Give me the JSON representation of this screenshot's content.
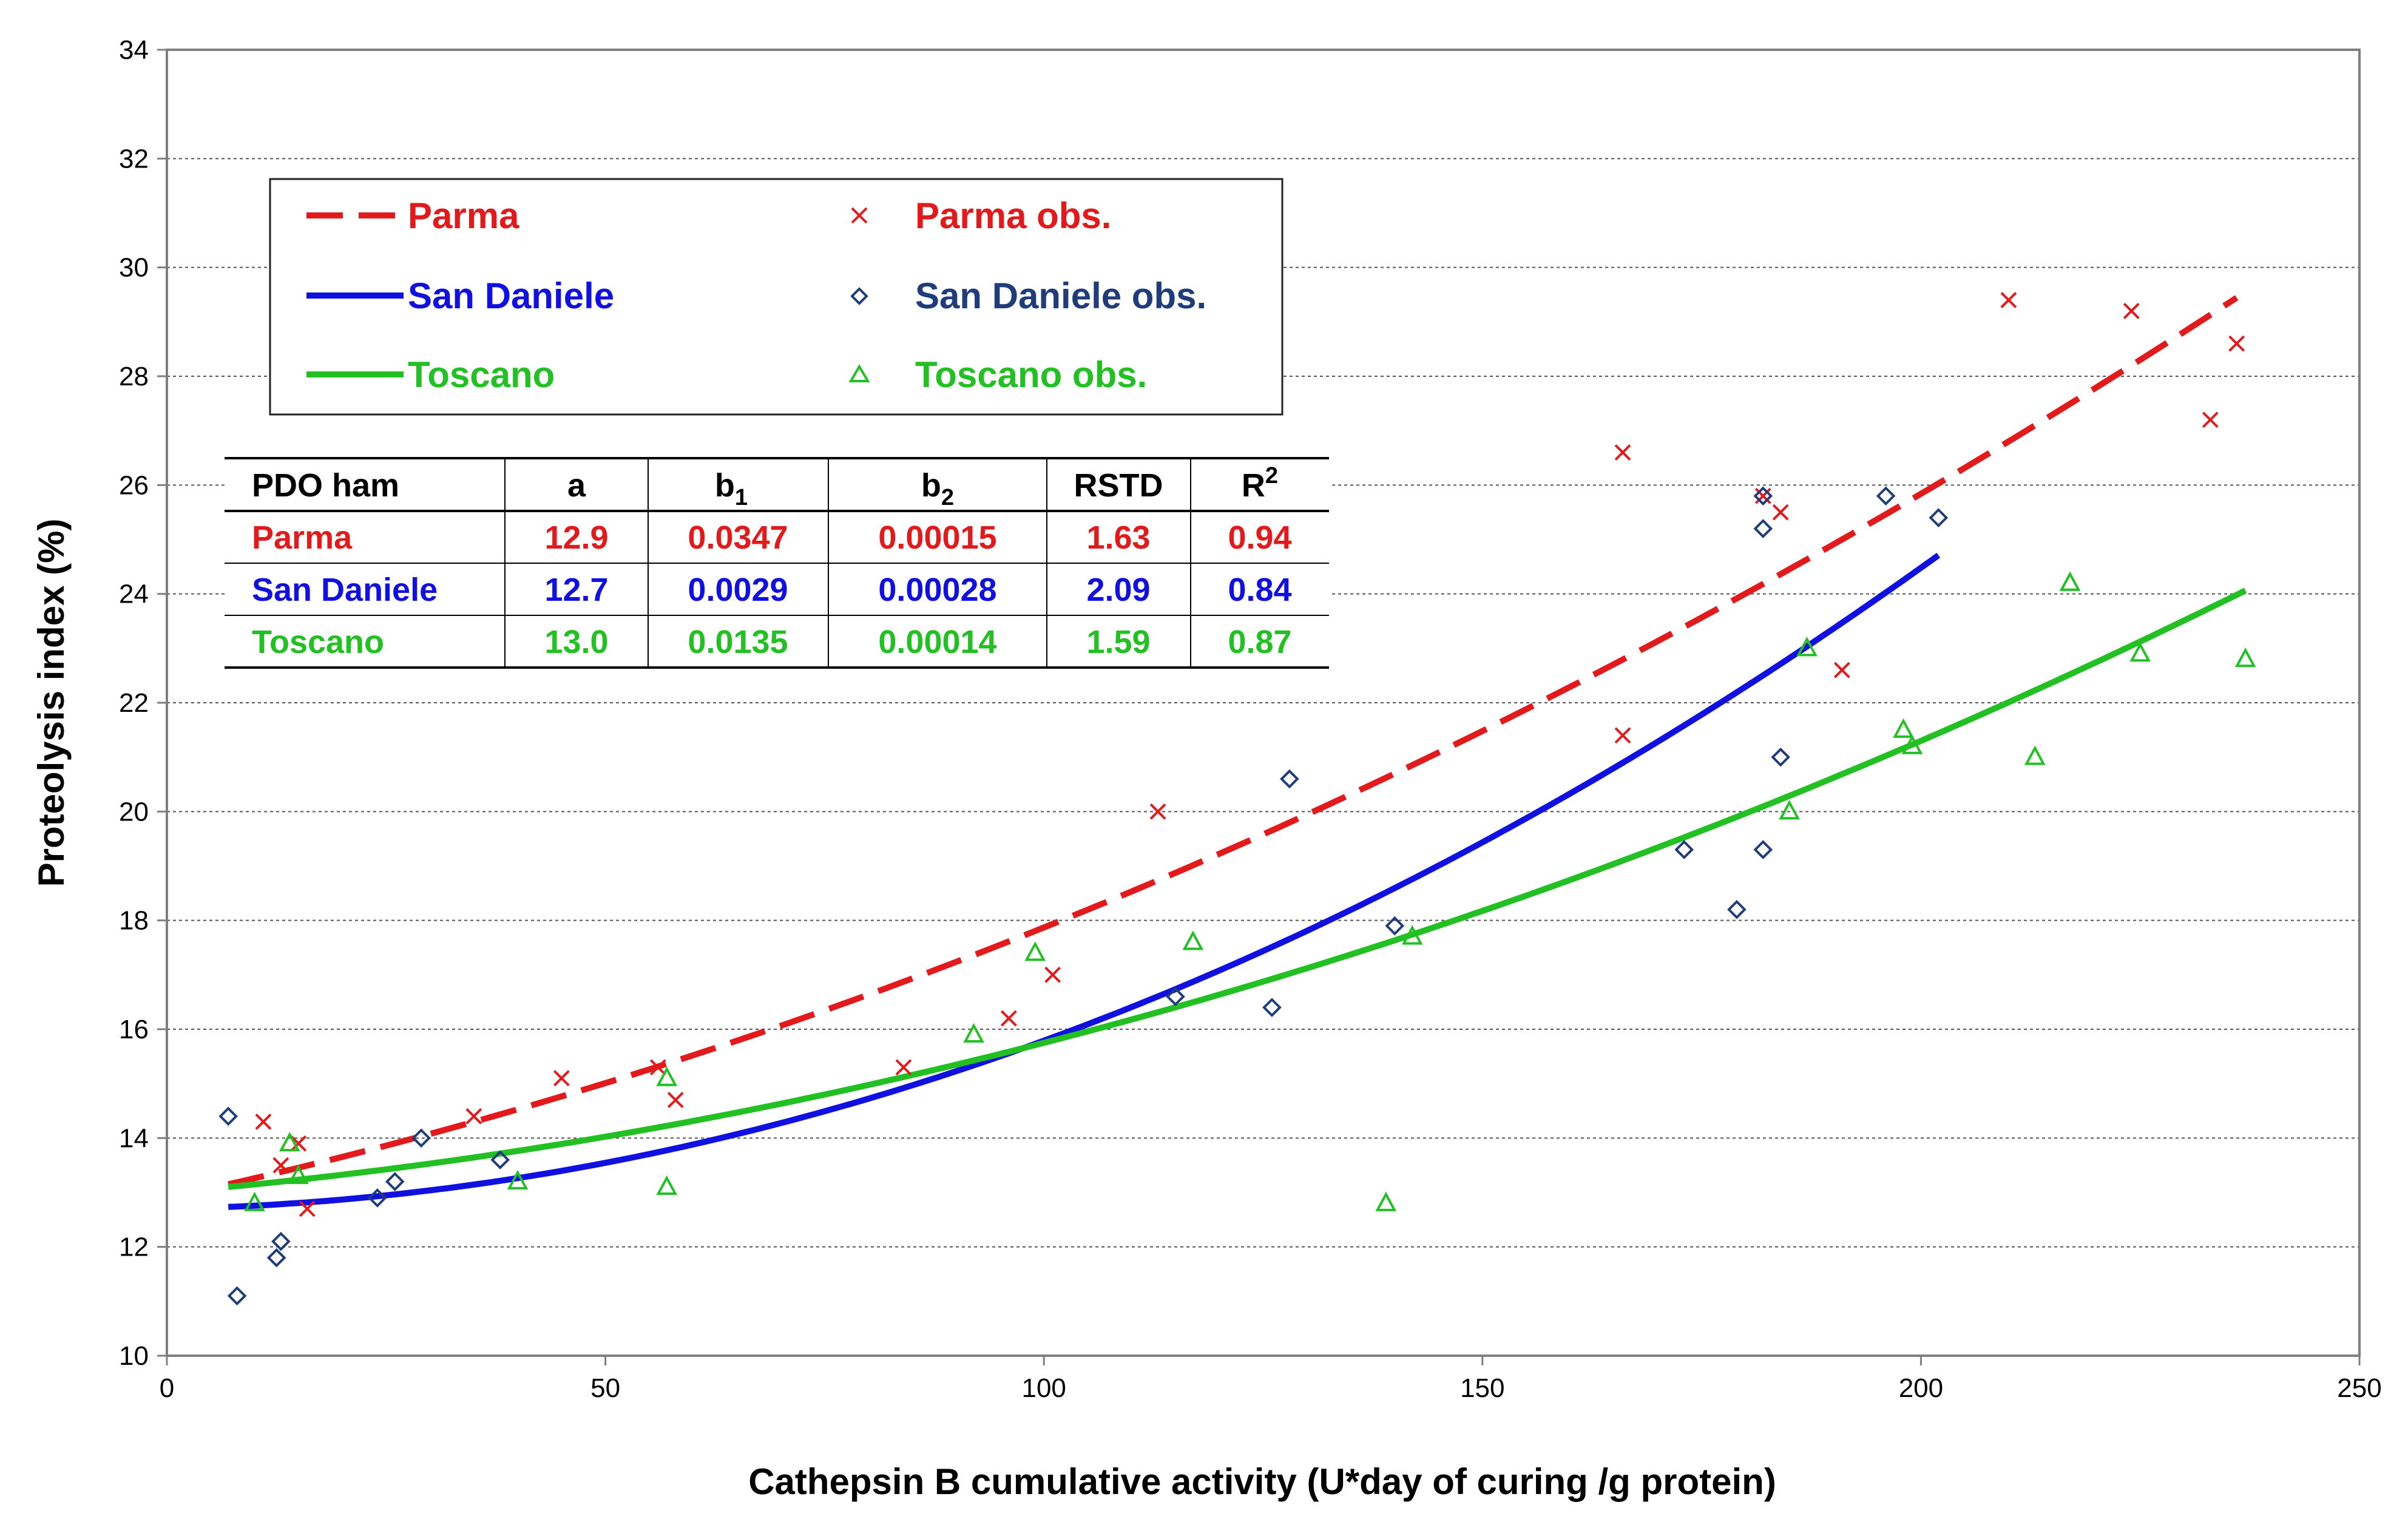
{
  "chart_data": {
    "type": "scatter",
    "xlabel": "Cathepsin B cumulative activity (U*day of curing /g protein)",
    "ylabel": "Proteolysis index (%)",
    "xlim": [
      0,
      250
    ],
    "ylim": [
      10,
      34
    ],
    "xticks": [
      0,
      50,
      100,
      150,
      200,
      250
    ],
    "yticks": [
      10,
      12,
      14,
      16,
      18,
      20,
      22,
      24,
      26,
      28,
      30,
      32,
      34
    ],
    "grid": "horizontal dotted",
    "legend": [
      {
        "key": "parma_line",
        "label": "Parma",
        "marker": "dashed-line",
        "color": "#e31a1c"
      },
      {
        "key": "parma_obs",
        "label": "Parma obs.",
        "marker": "x",
        "color": "#e31a1c"
      },
      {
        "key": "sd_line",
        "label": "San Daniele",
        "marker": "line",
        "color": "#1010e0"
      },
      {
        "key": "sd_obs",
        "label": "San Daniele obs.",
        "marker": "diamond",
        "color": "#1f3d7a"
      },
      {
        "key": "tos_line",
        "label": "Toscano",
        "marker": "line",
        "color": "#22c022"
      },
      {
        "key": "tos_obs",
        "label": "Toscano obs.",
        "marker": "triangle",
        "color": "#22c022"
      }
    ],
    "table": {
      "headers": [
        "PDO ham",
        "a",
        "b",
        "b",
        "RSTD",
        "R"
      ],
      "header_subscripts": [
        "",
        "",
        "1",
        "2",
        "",
        ""
      ],
      "header_superscripts": [
        "",
        "",
        "",
        "",
        "",
        "2"
      ],
      "rows": [
        {
          "name": "Parma",
          "a": "12.9",
          "b1": "0.0347",
          "b2": "0.00015",
          "rstd": "1.63",
          "r2": "0.94",
          "color": "#e31a1c"
        },
        {
          "name": "San Daniele",
          "a": "12.7",
          "b1": "0.0029",
          "b2": "0.00028",
          "rstd": "2.09",
          "r2": "0.84",
          "color": "#1010e0"
        },
        {
          "name": "Toscano",
          "a": "13.0",
          "b1": "0.0135",
          "b2": "0.00014",
          "rstd": "1.59",
          "r2": "0.87",
          "color": "#22c022"
        }
      ]
    },
    "series": [
      {
        "name": "Parma",
        "kind": "line",
        "dash": true,
        "color": "#e31a1c",
        "x_range": [
          7,
          236
        ],
        "a": 12.9,
        "b1": 0.0347,
        "b2": 0.00015
      },
      {
        "name": "San Daniele",
        "kind": "line",
        "dash": false,
        "color": "#1010e0",
        "x_range": [
          7,
          202
        ],
        "a": 12.7,
        "b1": 0.0029,
        "b2": 0.00028
      },
      {
        "name": "Toscano",
        "kind": "line",
        "dash": false,
        "color": "#22c022",
        "x_range": [
          7,
          237
        ],
        "a": 13.0,
        "b1": 0.0135,
        "b2": 0.00014
      },
      {
        "name": "Parma obs.",
        "kind": "scatter",
        "marker": "x",
        "color": "#e31a1c",
        "points": [
          [
            11,
            14.3
          ],
          [
            13,
            13.5
          ],
          [
            15,
            13.9
          ],
          [
            16,
            12.7
          ],
          [
            35,
            14.4
          ],
          [
            45,
            15.1
          ],
          [
            56,
            15.3
          ],
          [
            58,
            14.7
          ],
          [
            84,
            15.3
          ],
          [
            96,
            16.2
          ],
          [
            101,
            17.0
          ],
          [
            113,
            20.0
          ],
          [
            166,
            26.6
          ],
          [
            166,
            21.4
          ],
          [
            184,
            25.5
          ],
          [
            182,
            25.8
          ],
          [
            191,
            22.6
          ],
          [
            210,
            29.4
          ],
          [
            224,
            29.2
          ],
          [
            233,
            27.2
          ],
          [
            236,
            28.6
          ]
        ]
      },
      {
        "name": "San Daniele obs.",
        "kind": "scatter",
        "marker": "diamond",
        "color": "#1f3d7a",
        "points": [
          [
            7,
            14.4
          ],
          [
            8,
            11.1
          ],
          [
            12.5,
            11.8
          ],
          [
            13,
            12.1
          ],
          [
            24,
            12.9
          ],
          [
            26,
            13.2
          ],
          [
            29,
            14.0
          ],
          [
            38,
            13.6
          ],
          [
            115,
            16.6
          ],
          [
            126,
            16.4
          ],
          [
            128,
            20.6
          ],
          [
            140,
            17.9
          ],
          [
            173,
            19.3
          ],
          [
            179,
            18.2
          ],
          [
            182,
            19.3
          ],
          [
            182,
            25.2
          ],
          [
            182,
            25.8
          ],
          [
            184,
            21.0
          ],
          [
            196,
            25.8
          ],
          [
            202,
            25.4
          ]
        ]
      },
      {
        "name": "Toscano obs.",
        "kind": "scatter",
        "marker": "triangle",
        "color": "#22c022",
        "points": [
          [
            10,
            12.8
          ],
          [
            14,
            13.9
          ],
          [
            15,
            13.3
          ],
          [
            40,
            13.2
          ],
          [
            57,
            13.1
          ],
          [
            57,
            15.1
          ],
          [
            92,
            15.9
          ],
          [
            99,
            17.4
          ],
          [
            117,
            17.6
          ],
          [
            139,
            12.8
          ],
          [
            142,
            17.7
          ],
          [
            185,
            20.0
          ],
          [
            187,
            23.0
          ],
          [
            198,
            21.5
          ],
          [
            199,
            21.2
          ],
          [
            213,
            21.0
          ],
          [
            217,
            24.2
          ],
          [
            225,
            22.9
          ],
          [
            237,
            22.8
          ]
        ]
      }
    ]
  }
}
